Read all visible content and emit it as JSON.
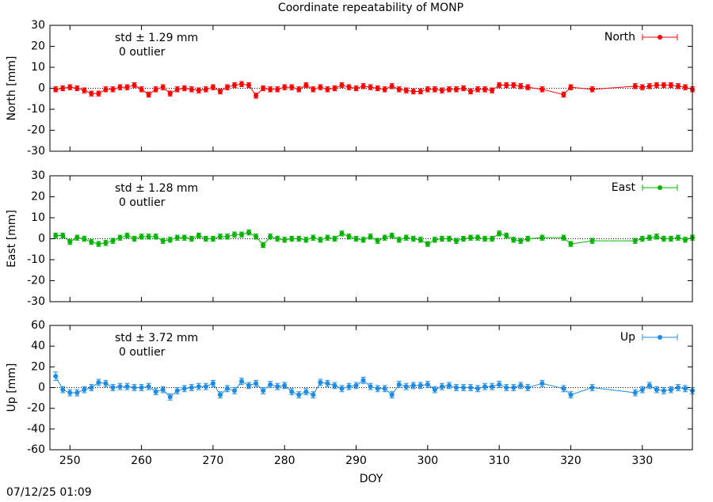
{
  "title": "Coordinate repeatability of MONP",
  "timestamp": "07/12/25 01:09",
  "chart_data": [
    {
      "type": "errorbar-line",
      "ylabel": "North [mm]",
      "annotation": "std ± 1.29 mm",
      "annotation2": "0 outlier",
      "legend": "top-right",
      "x": [
        248,
        249,
        250,
        251,
        252,
        253,
        254,
        255,
        256,
        257,
        258,
        259,
        260,
        261,
        262,
        263,
        264,
        265,
        266,
        267,
        268,
        269,
        270,
        271,
        272,
        273,
        274,
        275,
        276,
        277,
        278,
        279,
        280,
        281,
        282,
        283,
        284,
        285,
        286,
        287,
        288,
        289,
        290,
        291,
        292,
        293,
        294,
        295,
        296,
        297,
        298,
        299,
        300,
        301,
        302,
        303,
        304,
        305,
        306,
        307,
        308,
        309,
        310,
        311,
        312,
        313,
        314,
        316,
        319,
        320,
        323,
        329,
        330,
        331,
        332,
        333,
        334,
        335,
        336,
        337
      ],
      "xlim": [
        247.2,
        337
      ],
      "xticks": [
        250,
        260,
        270,
        280,
        290,
        300,
        310,
        320,
        330
      ],
      "ylim": [
        -30,
        30
      ],
      "yticks": [
        -30,
        -20,
        -10,
        0,
        10,
        20,
        30
      ],
      "series": [
        {
          "name": "North",
          "color": "#ff0000",
          "values": [
            -0.5,
            0,
            0.5,
            0,
            -1,
            -2.5,
            -2.5,
            -0.5,
            -0.5,
            0.5,
            0.5,
            1.5,
            -0.5,
            -3,
            -0.5,
            0.5,
            -2.5,
            -0.5,
            0,
            -0.5,
            -1,
            -0.5,
            0.5,
            -1.5,
            0.5,
            1.5,
            2,
            1.5,
            -3.5,
            0,
            -0.5,
            -0.5,
            0.5,
            0.5,
            -0.5,
            1.5,
            -0.5,
            0.5,
            -0.5,
            0,
            1.5,
            0.5,
            0,
            1,
            0.5,
            0,
            -0.5,
            1,
            -0.5,
            -1,
            -1.5,
            -1.5,
            -0.5,
            -0.5,
            -1,
            -0.5,
            -0.5,
            0,
            -1.5,
            -0.5,
            -0.5,
            -1,
            1.5,
            1.5,
            1.5,
            1,
            0.5,
            -0.5,
            -3,
            0.5,
            -0.5,
            1,
            0.5,
            1,
            1.5,
            1.5,
            1.5,
            1,
            0.5,
            -0.5
          ],
          "errors": [
            1.2,
            1.2,
            1.2,
            1.2,
            1.2,
            1.2,
            1.2,
            1.2,
            1.2,
            1.2,
            1.2,
            1.2,
            1.2,
            1.2,
            1.2,
            1.2,
            1.2,
            1.2,
            1.2,
            1.2,
            1.2,
            1.2,
            1.2,
            1.2,
            1.2,
            1.2,
            1.2,
            1.2,
            1.2,
            1.2,
            1.2,
            1.2,
            1.2,
            1.2,
            1.2,
            1.2,
            1.2,
            1.2,
            1.2,
            1.2,
            1.2,
            1.2,
            1.2,
            1.2,
            1.2,
            1.2,
            1.2,
            1.2,
            1.2,
            1.2,
            1.2,
            1.2,
            1.2,
            1.2,
            1.2,
            1.2,
            1.2,
            1.2,
            1.2,
            1.2,
            1.2,
            1.2,
            1.2,
            1.2,
            1.2,
            1.2,
            1.2,
            1.2,
            1.2,
            1.2,
            1.2,
            1.2,
            1.2,
            1.2,
            1.2,
            1.2,
            1.2,
            1.2,
            1.2,
            1.2
          ]
        }
      ]
    },
    {
      "type": "errorbar-line",
      "ylabel": "East [mm]",
      "annotation": "std ± 1.28 mm",
      "annotation2": "0 outlier",
      "legend": "top-right",
      "x": [
        248,
        249,
        250,
        251,
        252,
        253,
        254,
        255,
        256,
        257,
        258,
        259,
        260,
        261,
        262,
        263,
        264,
        265,
        266,
        267,
        268,
        269,
        270,
        271,
        272,
        273,
        274,
        275,
        276,
        277,
        278,
        279,
        280,
        281,
        282,
        283,
        284,
        285,
        286,
        287,
        288,
        289,
        290,
        291,
        292,
        293,
        294,
        295,
        296,
        297,
        298,
        299,
        300,
        301,
        302,
        303,
        304,
        305,
        306,
        307,
        308,
        309,
        310,
        311,
        312,
        313,
        314,
        316,
        319,
        320,
        323,
        329,
        330,
        331,
        332,
        333,
        334,
        335,
        336,
        337
      ],
      "xlim": [
        247.2,
        337
      ],
      "xticks": [
        250,
        260,
        270,
        280,
        290,
        300,
        310,
        320,
        330
      ],
      "ylim": [
        -30,
        30
      ],
      "yticks": [
        -30,
        -20,
        -10,
        0,
        10,
        20,
        30
      ],
      "series": [
        {
          "name": "East",
          "color": "#00b400",
          "values": [
            1.5,
            1.5,
            -1.5,
            0.5,
            0,
            -1.5,
            -2.5,
            -2,
            -1,
            0.5,
            1.5,
            0,
            1,
            1,
            1,
            -1,
            -0.5,
            0.5,
            0.5,
            0,
            1.5,
            0,
            0,
            1,
            1,
            2,
            2,
            3,
            1,
            -3,
            1,
            0,
            -0.5,
            0,
            0,
            -0.5,
            0.5,
            -0.5,
            0.5,
            0,
            2.5,
            1,
            0,
            -0.5,
            1,
            -1,
            0.5,
            1.5,
            -0.5,
            0.5,
            0,
            -0.5,
            -2.5,
            -0.5,
            0,
            0,
            -1,
            0,
            0.5,
            0.5,
            0,
            0,
            2.5,
            1.5,
            -0.5,
            -1,
            0,
            0.5,
            0.5,
            -2.5,
            -1,
            -1,
            0,
            0.5,
            1,
            0,
            0,
            0.5,
            -0.5,
            0.5
          ],
          "errors": [
            1.2,
            1.2,
            1.2,
            1.2,
            1.2,
            1.2,
            1.2,
            1.2,
            1.2,
            1.2,
            1.2,
            1.2,
            1.2,
            1.2,
            1.2,
            1.2,
            1.2,
            1.2,
            1.2,
            1.2,
            1.2,
            1.2,
            1.2,
            1.2,
            1.2,
            1.2,
            1.2,
            1.2,
            1.2,
            1.2,
            1.2,
            1.2,
            1.2,
            1.2,
            1.2,
            1.2,
            1.2,
            1.2,
            1.2,
            1.2,
            1.2,
            1.2,
            1.2,
            1.2,
            1.2,
            1.2,
            1.2,
            1.2,
            1.2,
            1.2,
            1.2,
            1.2,
            1.2,
            1.2,
            1.2,
            1.2,
            1.2,
            1.2,
            1.2,
            1.2,
            1.2,
            1.2,
            1.2,
            1.2,
            1.2,
            1.2,
            1.2,
            1.2,
            1.2,
            1.2,
            1.2,
            1.2,
            1.2,
            1.2,
            1.2,
            1.2,
            1.2,
            1.2,
            1.2,
            1.2
          ]
        }
      ]
    },
    {
      "type": "errorbar-line",
      "ylabel": "Up [mm]",
      "xlabel": "DOY",
      "annotation": "std ± 3.72 mm",
      "annotation2": "0 outlier",
      "legend": "top-right",
      "x": [
        248,
        249,
        250,
        251,
        252,
        253,
        254,
        255,
        256,
        257,
        258,
        259,
        260,
        261,
        262,
        263,
        264,
        265,
        266,
        267,
        268,
        269,
        270,
        271,
        272,
        273,
        274,
        275,
        276,
        277,
        278,
        279,
        280,
        281,
        282,
        283,
        284,
        285,
        286,
        287,
        288,
        289,
        290,
        291,
        292,
        293,
        294,
        295,
        296,
        297,
        298,
        299,
        300,
        301,
        302,
        303,
        304,
        305,
        306,
        307,
        308,
        309,
        310,
        311,
        312,
        313,
        314,
        316,
        319,
        320,
        323,
        329,
        330,
        331,
        332,
        333,
        334,
        335,
        336,
        337
      ],
      "xlim": [
        247.2,
        337
      ],
      "xticks": [
        250,
        260,
        270,
        280,
        290,
        300,
        310,
        320,
        330
      ],
      "ylim": [
        -60,
        60
      ],
      "yticks": [
        -60,
        -40,
        -20,
        0,
        20,
        40,
        60
      ],
      "series": [
        {
          "name": "Up",
          "color": "#1e8ce6",
          "values": [
            11,
            -2,
            -5,
            -5,
            -2,
            0,
            5,
            4,
            0,
            1,
            1,
            0,
            0,
            1,
            -4,
            -2,
            -9,
            -3,
            -1,
            0,
            1,
            1,
            4,
            -7,
            -1,
            -3,
            6,
            2,
            4,
            -3,
            3,
            1,
            2,
            -4,
            -7,
            -4,
            -7,
            5,
            4,
            2,
            -1,
            1,
            2,
            7,
            1,
            -1,
            -1,
            -7,
            3,
            1,
            2,
            2,
            3,
            -2,
            1,
            2,
            0,
            0,
            0,
            -1,
            1,
            1,
            3,
            0,
            0,
            2,
            0,
            4,
            -1,
            -7,
            0,
            -5,
            -2,
            2,
            -2,
            -3,
            -2,
            0,
            -1,
            -3
          ],
          "errors": [
            4,
            3,
            3,
            3,
            3,
            3,
            3,
            3,
            3,
            3,
            3,
            3,
            3,
            3,
            3,
            3,
            3,
            3,
            3,
            3,
            3,
            3,
            3,
            3,
            3,
            3,
            3,
            3,
            3,
            3,
            3,
            3,
            3,
            3,
            3,
            3,
            3,
            3,
            3,
            3,
            3,
            3,
            3,
            3,
            3,
            3,
            3,
            3,
            3,
            3,
            3,
            3,
            3,
            3,
            3,
            3,
            3,
            3,
            3,
            3,
            3,
            3,
            3,
            3,
            3,
            3,
            3,
            3,
            3,
            3,
            3,
            3,
            3,
            3,
            3,
            3,
            3,
            3,
            3,
            3
          ]
        }
      ]
    }
  ]
}
